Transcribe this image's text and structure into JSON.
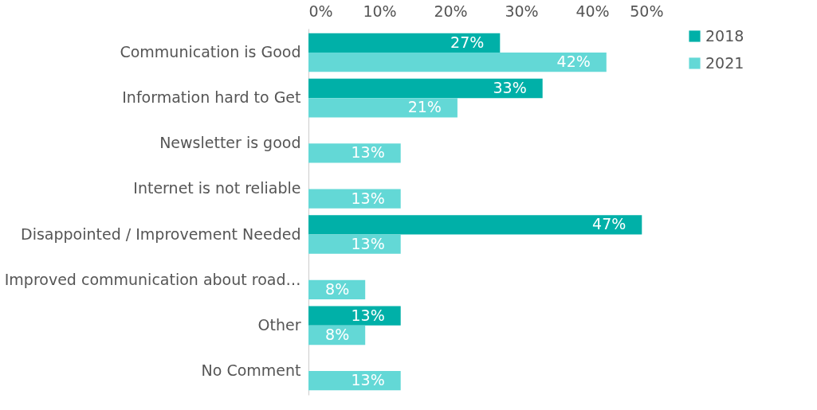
{
  "chart_data": {
    "type": "bar",
    "orientation": "horizontal",
    "categories": [
      "Communication is Good",
      "Information hard to Get",
      "Newsletter is good",
      "Internet is not reliable",
      "Disappointed / Improvement Needed",
      "Improved communication about road…",
      "Other",
      "No Comment"
    ],
    "series": [
      {
        "name": "2018",
        "color": "#00b0a8",
        "values": [
          27,
          33,
          null,
          null,
          47,
          null,
          13,
          null
        ],
        "value_labels": [
          "27%",
          "33%",
          null,
          null,
          "47%",
          null,
          "13%",
          null
        ]
      },
      {
        "name": "2021",
        "color": "#63d8d6",
        "values": [
          42,
          21,
          13,
          13,
          13,
          8,
          8,
          13
        ],
        "value_labels": [
          "42%",
          "21%",
          "13%",
          "13%",
          "13%",
          "8%",
          "8%",
          "13%"
        ]
      }
    ],
    "xlim": [
      0,
      50
    ],
    "xticks": [
      {
        "value": 0,
        "label": "0%"
      },
      {
        "value": 10,
        "label": "10%"
      },
      {
        "value": 20,
        "label": "20%"
      },
      {
        "value": 30,
        "label": "30%"
      },
      {
        "value": 40,
        "label": "40%"
      },
      {
        "value": 50,
        "label": "50%"
      }
    ],
    "grid": false,
    "legend": "right"
  }
}
